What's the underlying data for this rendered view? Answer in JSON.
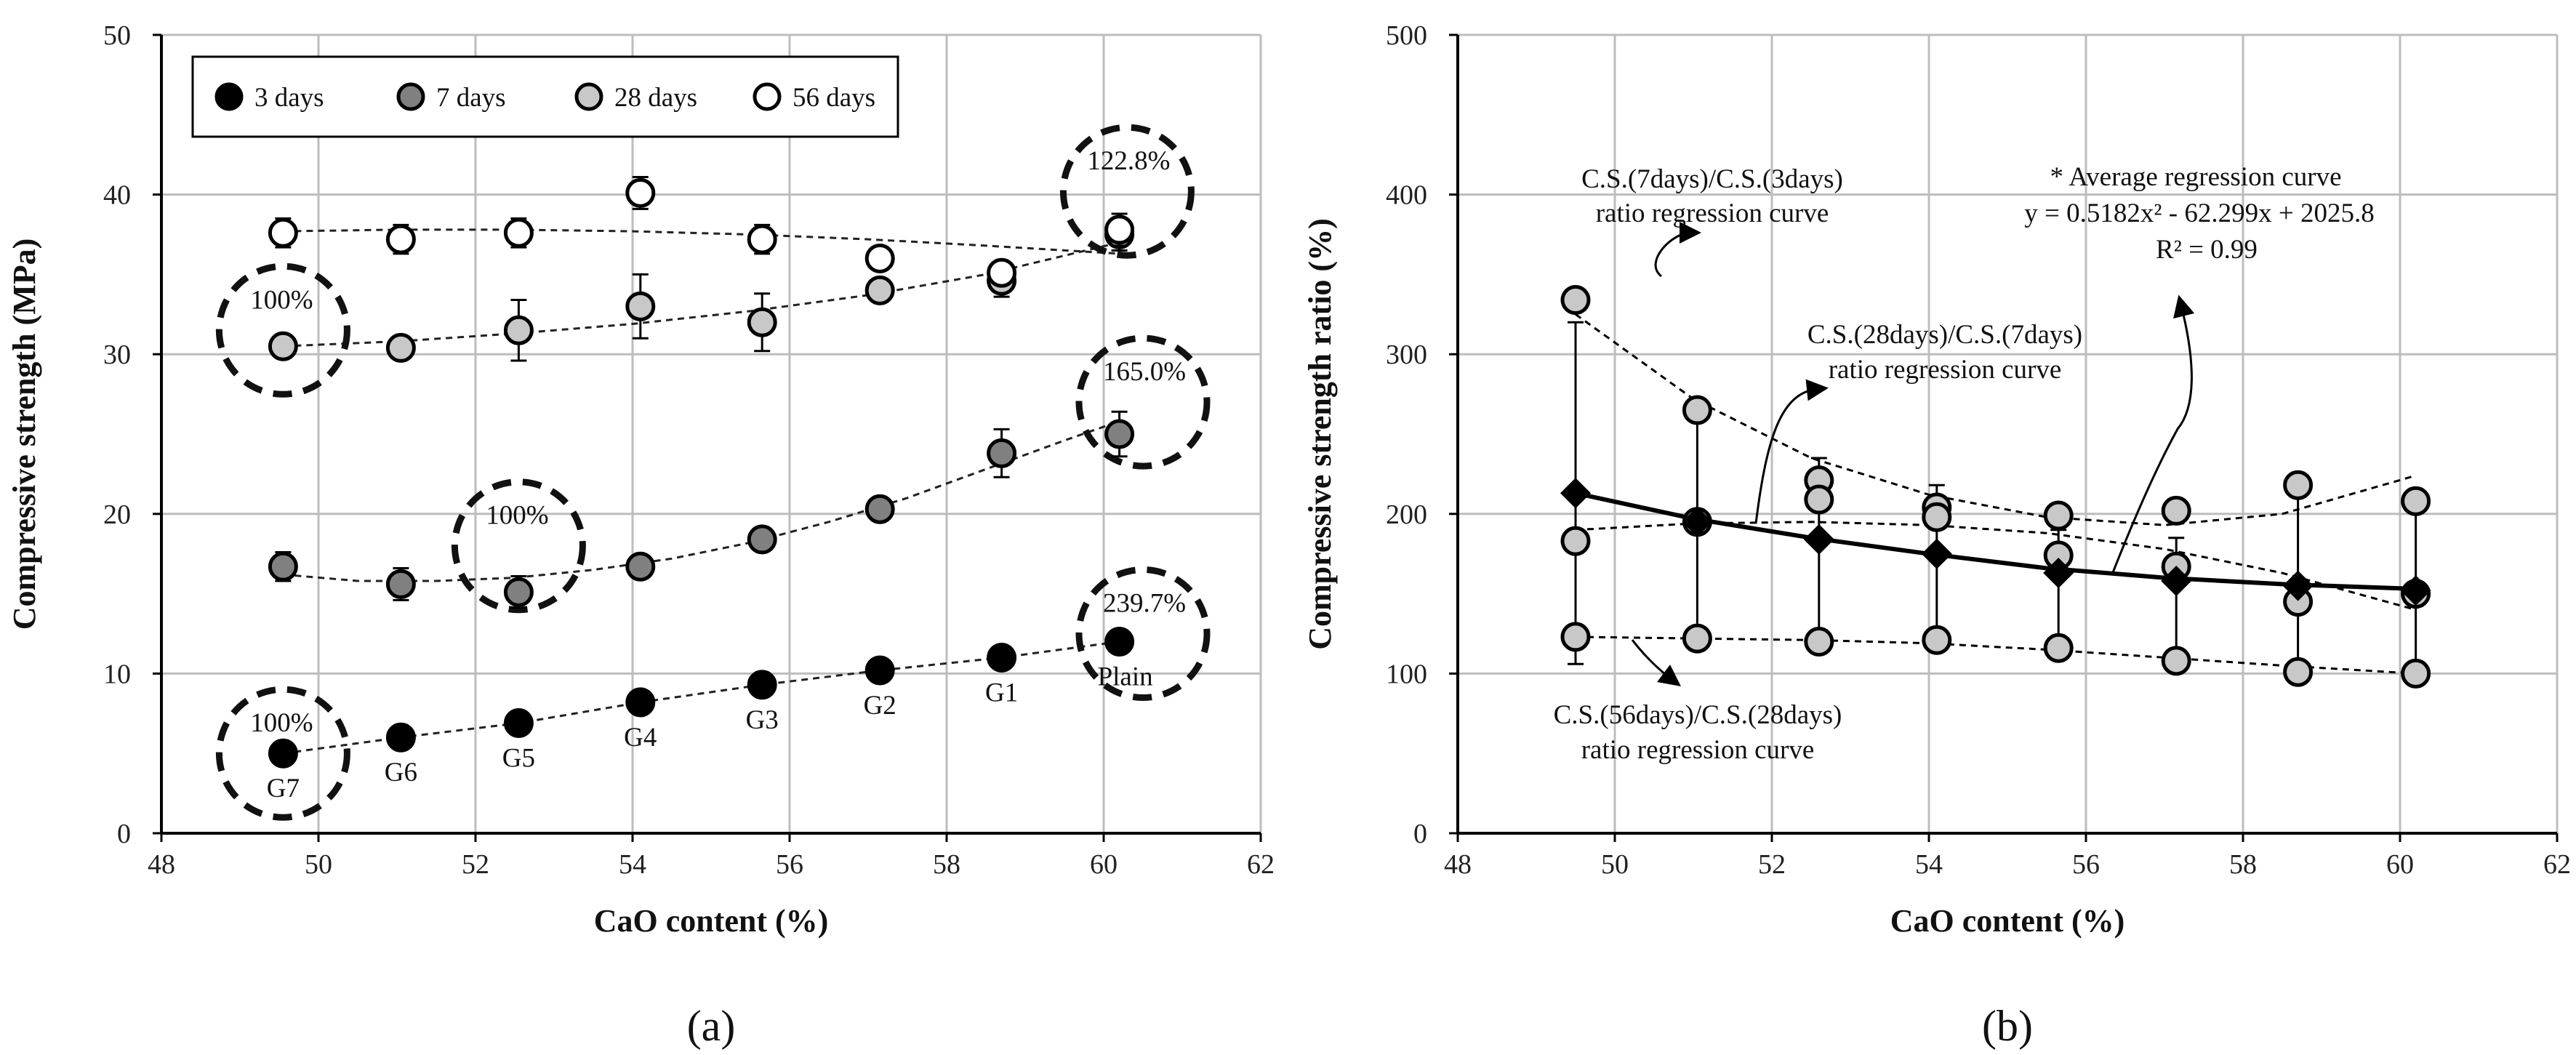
{
  "chart_data": [
    {
      "type": "scatter",
      "panel_label": "(a)",
      "xlabel": "CaO content (%)",
      "ylabel": "Compressive strength (MPa)",
      "xlim": [
        48,
        62
      ],
      "ylim": [
        0,
        50
      ],
      "xticks": [
        48,
        50,
        52,
        54,
        56,
        58,
        60,
        62
      ],
      "yticks": [
        0,
        10,
        20,
        30,
        40,
        50
      ],
      "grid": true,
      "legend_position": "top",
      "x": [
        49.55,
        51.05,
        52.55,
        54.1,
        55.65,
        57.15,
        58.7,
        60.2
      ],
      "group_labels": [
        "G7",
        "G6",
        "G5",
        "G4",
        "G3",
        "G2",
        "G1",
        "Plain"
      ],
      "series": [
        {
          "name": "3 days",
          "fill": "#000000",
          "values": [
            5.0,
            6.0,
            6.9,
            8.2,
            9.3,
            10.2,
            11.0,
            12.0
          ],
          "errors": [
            0.3,
            0.4,
            0.3,
            0.3,
            0.4,
            0.3,
            0.3,
            0.3
          ]
        },
        {
          "name": "7 days",
          "fill": "#808080",
          "values": [
            16.7,
            15.6,
            15.1,
            16.7,
            18.4,
            20.3,
            23.8,
            25.0
          ],
          "errors": [
            0.9,
            1.0,
            1.0,
            0.4,
            0.5,
            0.4,
            1.5,
            1.4
          ]
        },
        {
          "name": "28 days",
          "fill": "#c8c8c8",
          "values": [
            30.5,
            30.4,
            31.5,
            33.0,
            32.0,
            34.0,
            34.6,
            37.5
          ],
          "errors": [
            0.6,
            0.6,
            1.9,
            2.0,
            1.8,
            0.6,
            1.0,
            1.0
          ]
        },
        {
          "name": "56 days",
          "fill": "#ffffff",
          "values": [
            37.6,
            37.2,
            37.6,
            40.1,
            37.2,
            36.0,
            35.1,
            37.8
          ],
          "errors": [
            0.9,
            0.9,
            0.9,
            1.0,
            0.9,
            0.4,
            0.4,
            1.0
          ]
        }
      ],
      "trend_lines": [
        {
          "series": "3 days",
          "x": [
            49.55,
            51.05,
            52.55,
            54.1,
            55.65,
            57.15,
            58.7,
            60.2
          ],
          "y": [
            5.0,
            6.0,
            6.9,
            8.2,
            9.3,
            10.2,
            11.0,
            12.0
          ]
        },
        {
          "series": "7 days",
          "x": [
            49.55,
            50.5,
            51.5,
            52.5,
            53.5,
            54.5,
            55.5,
            56.5,
            57.5,
            58.5,
            59.5,
            60.2
          ],
          "y": [
            16.2,
            15.8,
            15.8,
            16.0,
            16.5,
            17.2,
            18.2,
            19.5,
            21.0,
            22.8,
            24.6,
            25.8
          ]
        },
        {
          "series": "28 days",
          "x": [
            49.55,
            51.0,
            52.5,
            54.0,
            55.5,
            57.0,
            58.5,
            60.2
          ],
          "y": [
            30.5,
            30.8,
            31.3,
            31.9,
            32.7,
            33.7,
            35.0,
            37.0
          ]
        },
        {
          "series": "56 days",
          "x": [
            49.55,
            51.0,
            52.5,
            54.0,
            55.5,
            57.0,
            58.5,
            60.2
          ],
          "y": [
            37.7,
            37.8,
            37.8,
            37.7,
            37.5,
            37.2,
            36.8,
            36.3
          ]
        }
      ],
      "circle_annotations": [
        {
          "label": "100%",
          "x": 49.55,
          "y": 5.0
        },
        {
          "label": "100%",
          "x": 52.55,
          "y": 18.0
        },
        {
          "label": "100%",
          "x": 49.55,
          "y": 31.5
        },
        {
          "label": "239.7%",
          "x": 60.5,
          "y": 12.5
        },
        {
          "label": "165.0%",
          "x": 60.5,
          "y": 27.0
        },
        {
          "label": "122.8%",
          "x": 60.3,
          "y": 40.2
        }
      ]
    },
    {
      "type": "scatter",
      "panel_label": "(b)",
      "xlabel": "CaO content (%)",
      "ylabel": "Compressive strength ratio (%)",
      "xlim": [
        48,
        62
      ],
      "ylim": [
        0,
        500
      ],
      "xticks": [
        48,
        50,
        52,
        54,
        56,
        58,
        60,
        62
      ],
      "yticks": [
        0,
        100,
        200,
        300,
        400,
        500
      ],
      "grid": true,
      "x": [
        49.5,
        51.05,
        52.6,
        54.1,
        55.65,
        57.15,
        58.7,
        60.2
      ],
      "series": [
        {
          "name": "C.S.(7days)/C.S.(3days)",
          "values": [
            334,
            265,
            221,
            204,
            199,
            202,
            218,
            208
          ]
        },
        {
          "name": "C.S.(28days)/C.S.(7days)",
          "values": [
            183,
            195,
            209,
            198,
            174,
            167,
            145,
            150
          ]
        },
        {
          "name": "C.S.(56days)/C.S.(28days)",
          "values": [
            123,
            122,
            120,
            121,
            116,
            108,
            101,
            100
          ]
        },
        {
          "name": "Average",
          "values": [
            213,
            195,
            184,
            175,
            163,
            158,
            155,
            152
          ]
        }
      ],
      "average_error_bars": [
        {
          "lo": 106,
          "hi": 320
        },
        {
          "lo": 123,
          "hi": 265
        },
        {
          "lo": 121,
          "hi": 235
        },
        {
          "lo": 122,
          "hi": 218
        },
        {
          "lo": 117,
          "hi": 190
        },
        {
          "lo": 108,
          "hi": 185
        },
        {
          "lo": 102,
          "hi": 212
        },
        {
          "lo": 100,
          "hi": 205
        }
      ],
      "regression_lines": [
        {
          "name": "7d/3d",
          "x": [
            49.5,
            51,
            52.5,
            54,
            55.5,
            57,
            58.5,
            60.2
          ],
          "y": [
            325,
            272,
            235,
            212,
            198,
            193,
            200,
            224
          ]
        },
        {
          "name": "28d/7d",
          "x": [
            49.5,
            51,
            52.5,
            54,
            55.5,
            57,
            58.5,
            60.2
          ],
          "y": [
            190,
            194,
            195,
            193,
            188,
            178,
            163,
            140
          ]
        },
        {
          "name": "56d/28d",
          "x": [
            49.5,
            51,
            52.5,
            54,
            55.5,
            57,
            58.5,
            60.2
          ],
          "y": [
            123,
            122,
            121,
            119,
            115,
            110,
            105,
            100
          ]
        },
        {
          "name": "average",
          "x": [
            49.5,
            51,
            52.5,
            54,
            55.5,
            57,
            58.5,
            60.2
          ],
          "y": [
            213,
            197,
            185,
            175,
            166,
            160,
            156,
            153
          ]
        }
      ],
      "annotations": {
        "label_7_3": [
          "C.S.(7days)/C.S.(3days)",
          "ratio regression curve"
        ],
        "label_28_7": [
          "C.S.(28days)/C.S.(7days)",
          "ratio regression curve"
        ],
        "label_56_28": [
          "C.S.(56days)/C.S.(28days)",
          "ratio regression curve"
        ],
        "average": [
          "* Average regression curve",
          "y = 0.5182x² - 62.299x + 2025.8",
          "R² = 0.99"
        ]
      }
    }
  ]
}
